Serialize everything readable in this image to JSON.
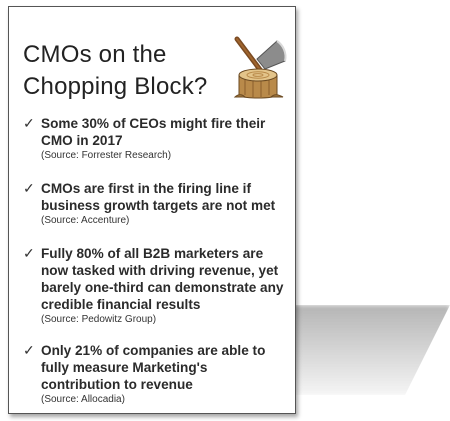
{
  "card": {
    "title_line1": "CMOs on the",
    "title_line2": "Chopping Block?",
    "icon": "axe-in-stump-icon",
    "check_glyph": "✓",
    "items": [
      {
        "text": "Some 30% of CEOs might fire their CMO in 2017",
        "source": "(Source: Forrester Research)"
      },
      {
        "text": "CMOs are first in the firing line if business growth targets are not met",
        "source": "(Source: Accenture)"
      },
      {
        "text": "Fully 80% of all B2B marketers are now tasked with driving revenue, yet barely one-third can demonstrate any credible financial results",
        "source": "(Source: Pedowitz Group)"
      },
      {
        "text": "Only 21% of companies are able to fully measure Marketing's contribution to revenue",
        "source": "(Source: Allocadia)"
      }
    ]
  }
}
